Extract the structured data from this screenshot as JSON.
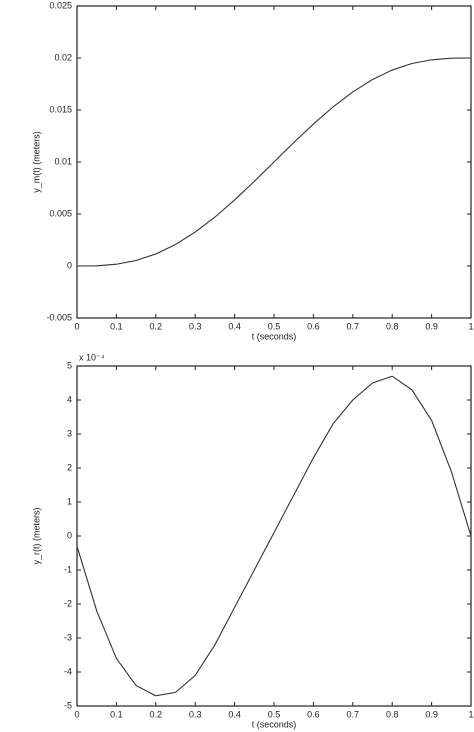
{
  "chart_data": [
    {
      "type": "line",
      "xlabel": "t (seconds)",
      "ylabel": "y_m(t) (meters)",
      "x": [
        0,
        0.05,
        0.1,
        0.15,
        0.2,
        0.25,
        0.3,
        0.35,
        0.4,
        0.45,
        0.5,
        0.55,
        0.6,
        0.65,
        0.7,
        0.75,
        0.8,
        0.85,
        0.9,
        0.95,
        1
      ],
      "series": [
        {
          "color": "#333333",
          "values": [
            0,
            2e-05,
            0.00017,
            0.00053,
            0.00116,
            0.00207,
            0.00326,
            0.0047,
            0.00635,
            0.00814,
            0.01,
            0.01186,
            0.01365,
            0.0153,
            0.01674,
            0.01793,
            0.01884,
            0.01947,
            0.01983,
            0.01998,
            0.02
          ]
        }
      ],
      "xlim": [
        0,
        1
      ],
      "ylim": [
        -0.005,
        0.025
      ],
      "xticks": [
        0,
        0.1,
        0.2,
        0.3,
        0.4,
        0.5,
        0.6,
        0.7,
        0.8,
        0.9,
        1
      ],
      "yticks": [
        -0.005,
        0,
        0.005,
        0.01,
        0.015,
        0.02,
        0.025
      ]
    },
    {
      "type": "line",
      "xlabel": "t (seconds)",
      "ylabel": "y_r(t) (meters)",
      "annotation": "x 10⁻⁴",
      "x": [
        0,
        0.05,
        0.1,
        0.15,
        0.2,
        0.25,
        0.3,
        0.35,
        0.4,
        0.45,
        0.5,
        0.55,
        0.6,
        0.65,
        0.7,
        0.75,
        0.8,
        0.85,
        0.9,
        0.95,
        1
      ],
      "series": [
        {
          "color": "#333333",
          "values": [
            -0.3,
            -2.2,
            -3.6,
            -4.4,
            -4.7,
            -4.6,
            -4.1,
            -3.2,
            -2.1,
            -1.0,
            0.1,
            1.2,
            2.3,
            3.3,
            4.0,
            4.5,
            4.7,
            4.3,
            3.4,
            1.9,
            0
          ]
        }
      ],
      "xlim": [
        0,
        1
      ],
      "ylim": [
        -5,
        5
      ],
      "xticks": [
        0,
        0.1,
        0.2,
        0.3,
        0.4,
        0.5,
        0.6,
        0.7,
        0.8,
        0.9,
        1
      ],
      "yticks": [
        -5,
        -4,
        -3,
        -2,
        -1,
        0,
        1,
        2,
        3,
        4,
        5
      ]
    }
  ]
}
